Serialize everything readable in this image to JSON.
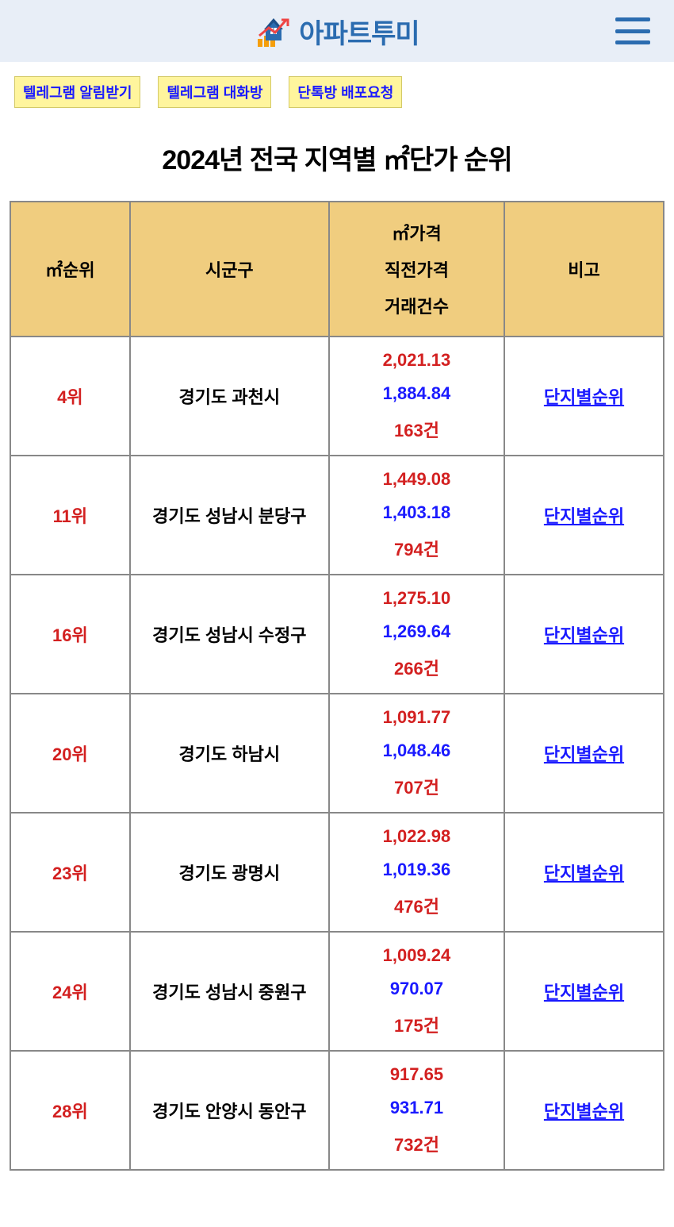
{
  "header": {
    "brand_name": "아파트투미",
    "logo_colors": {
      "house": "#2b6cb0",
      "roof": "#1e5089",
      "chart_bars": "#f59e0b",
      "arrow": "#ef4444"
    }
  },
  "chips": [
    {
      "label": "텔레그램 알림받기"
    },
    {
      "label": "텔레그램 대화방"
    },
    {
      "label": "단톡방 배포요청"
    }
  ],
  "page_title": "2024년 전국 지역별 ㎡단가 순위",
  "table": {
    "columns": {
      "rank": "㎡순위",
      "region": "시군구",
      "price_lines": [
        "㎡가격",
        "직전가격",
        "거래건수"
      ],
      "note": "비고"
    },
    "detail_link_label": "단지별순위",
    "rows": [
      {
        "rank": "4위",
        "region": "경기도 과천시",
        "price": "2,021.13",
        "prev": "1,884.84",
        "count": "163건"
      },
      {
        "rank": "11위",
        "region": "경기도 성남시 분당구",
        "price": "1,449.08",
        "prev": "1,403.18",
        "count": "794건"
      },
      {
        "rank": "16위",
        "region": "경기도 성남시 수정구",
        "price": "1,275.10",
        "prev": "1,269.64",
        "count": "266건"
      },
      {
        "rank": "20위",
        "region": "경기도 하남시",
        "price": "1,091.77",
        "prev": "1,048.46",
        "count": "707건"
      },
      {
        "rank": "23위",
        "region": "경기도 광명시",
        "price": "1,022.98",
        "prev": "1,019.36",
        "count": "476건"
      },
      {
        "rank": "24위",
        "region": "경기도 성남시 중원구",
        "price": "1,009.24",
        "prev": "970.07",
        "count": "175건"
      },
      {
        "rank": "28위",
        "region": "경기도 안양시 동안구",
        "price": "917.65",
        "prev": "931.71",
        "count": "732건"
      }
    ]
  },
  "colors": {
    "header_bg": "#e8eef7",
    "chip_bg": "#fff59d",
    "chip_text": "#1a1aff",
    "table_header_bg": "#f0cd7f",
    "border": "#888888",
    "rank_text": "#d32020",
    "price_current": "#d32020",
    "price_prev": "#1a1aff",
    "price_count": "#d32020",
    "link": "#1a1aff"
  }
}
